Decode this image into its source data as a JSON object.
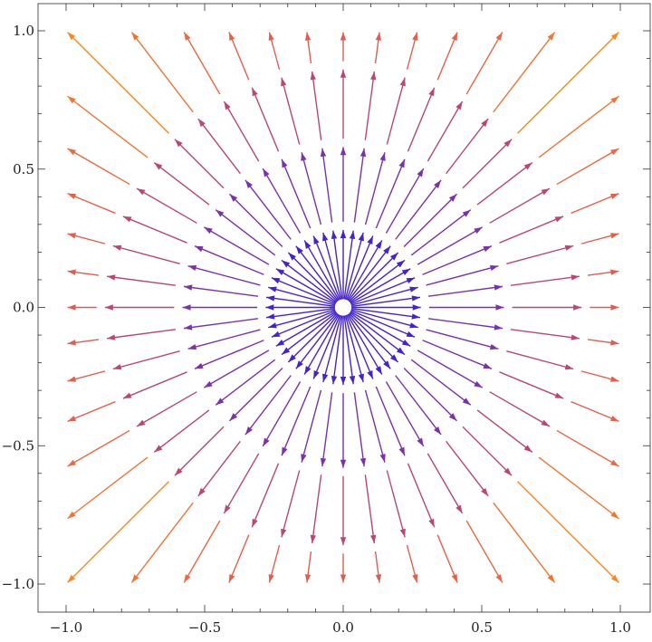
{
  "chart_data": {
    "type": "vector-field",
    "description_source": "radial stream field, vectors point away from origin",
    "field": {
      "u": "x",
      "v": "y"
    },
    "xlim": [
      -1.0,
      1.0
    ],
    "ylim": [
      -1.0,
      1.0
    ],
    "x_ticks": [
      -1.0,
      -0.5,
      0.0,
      0.5,
      1.0
    ],
    "y_ticks": [
      -1.0,
      -0.5,
      0.0,
      0.5,
      1.0
    ],
    "x_tick_labels": [
      "−1.0",
      "−0.5",
      "0.0",
      "0.5",
      "1.0"
    ],
    "y_tick_labels": [
      "−1.0",
      "−0.5",
      "0.0",
      "0.5",
      "1.0"
    ],
    "minor_ticks_per_interval": 5,
    "grid": false,
    "color_scale": {
      "by": "magnitude",
      "stops": [
        {
          "t": 0.0,
          "color": "#2a1bd8"
        },
        {
          "t": 0.3,
          "color": "#6a2cb8"
        },
        {
          "t": 0.55,
          "color": "#b0407e"
        },
        {
          "t": 0.8,
          "color": "#e8604a"
        },
        {
          "t": 1.0,
          "color": "#ff9a10"
        }
      ]
    },
    "streamlines": {
      "count": 48,
      "inner_radius": 0.03,
      "dash_segments": [
        [
          0.03,
          0.28
        ],
        [
          0.31,
          0.58
        ],
        [
          0.61,
          0.86
        ],
        [
          0.89,
          1.42
        ]
      ],
      "arrowheads_at": [
        0.28,
        0.58,
        0.86,
        1.42
      ]
    }
  },
  "frame_color": "#555555",
  "axis_color": "#333333"
}
